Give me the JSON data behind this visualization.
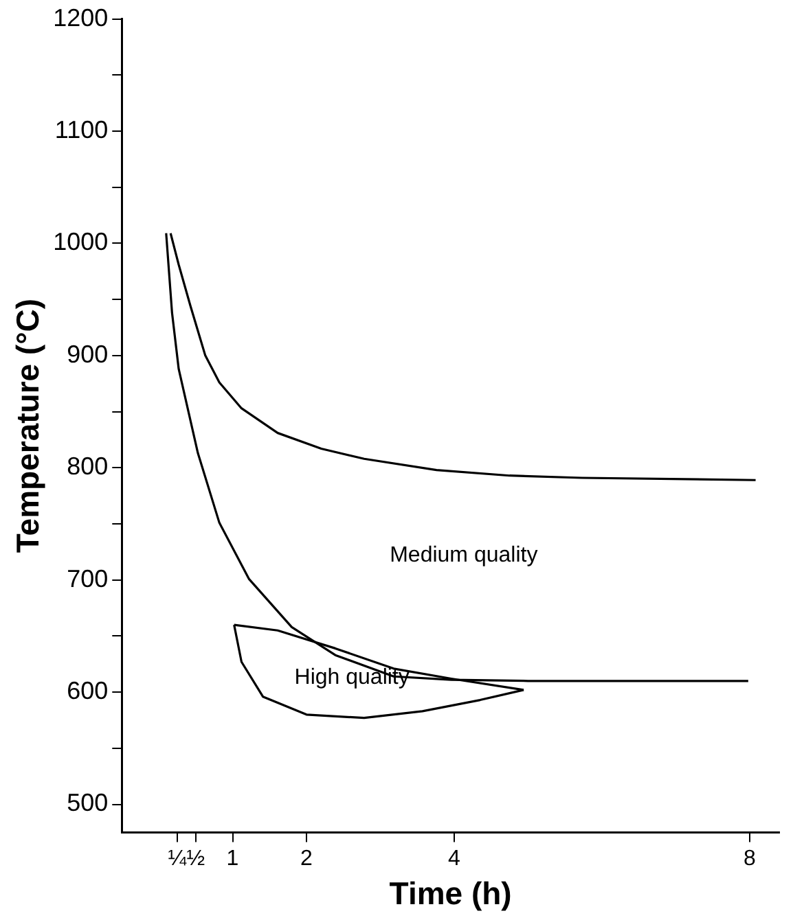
{
  "chart_data": {
    "type": "line",
    "xlabel": "Time (h)",
    "ylabel": "Temperature (°C)",
    "marker": "none",
    "line_style": "solid",
    "xlim": [
      -0.5,
      8.4
    ],
    "ylim": [
      475,
      1200
    ],
    "xticks": [
      {
        "value": 0.25,
        "label": "¼"
      },
      {
        "value": 0.5,
        "label": "½"
      },
      1,
      2,
      4,
      8
    ],
    "yticks": [
      500,
      {
        "value": 550,
        "label": null
      },
      600,
      {
        "value": 650,
        "label": null
      },
      700,
      {
        "value": 750,
        "label": null
      },
      800,
      {
        "value": 850,
        "label": null
      },
      900,
      {
        "value": 950,
        "label": null
      },
      1000,
      {
        "value": 1050,
        "label": null
      },
      1100,
      {
        "value": 1150,
        "label": null
      },
      1200
    ],
    "series": [
      {
        "color": "#000000",
        "x": [
          0.16,
          0.27,
          0.43,
          0.63,
          0.82,
          1.12,
          1.61,
          2.2,
          2.78,
          3.76,
          4.75,
          5.73,
          8.08
        ],
        "values": [
          1009,
          981,
          944,
          900,
          876,
          853,
          831,
          817,
          808,
          798,
          793,
          791,
          789
        ]
      },
      {
        "color": "#000000",
        "x": [
          0.1,
          0.18,
          0.27,
          0.53,
          0.82,
          1.22,
          1.8,
          2.39,
          3.18,
          3.96,
          5,
          6.5,
          7.98
        ],
        "values": [
          1009,
          938,
          888,
          813,
          751,
          701,
          658,
          633,
          614,
          611,
          610,
          610,
          610
        ]
      },
      {
        "color": "#000000",
        "x": [
          1.02,
          1.61,
          2.39,
          3.18,
          3.96,
          4.94
        ],
        "values": [
          660,
          655,
          639,
          621,
          612,
          602
        ]
      },
      {
        "color": "#000000",
        "x": [
          1.02,
          1.12,
          1.41,
          2.0,
          2.78,
          3.57,
          4.35,
          4.94
        ],
        "values": [
          660,
          627,
          596,
          580,
          577,
          583,
          593,
          602
        ]
      }
    ],
    "annotations": [
      "Medium quality",
      "High quality"
    ]
  }
}
